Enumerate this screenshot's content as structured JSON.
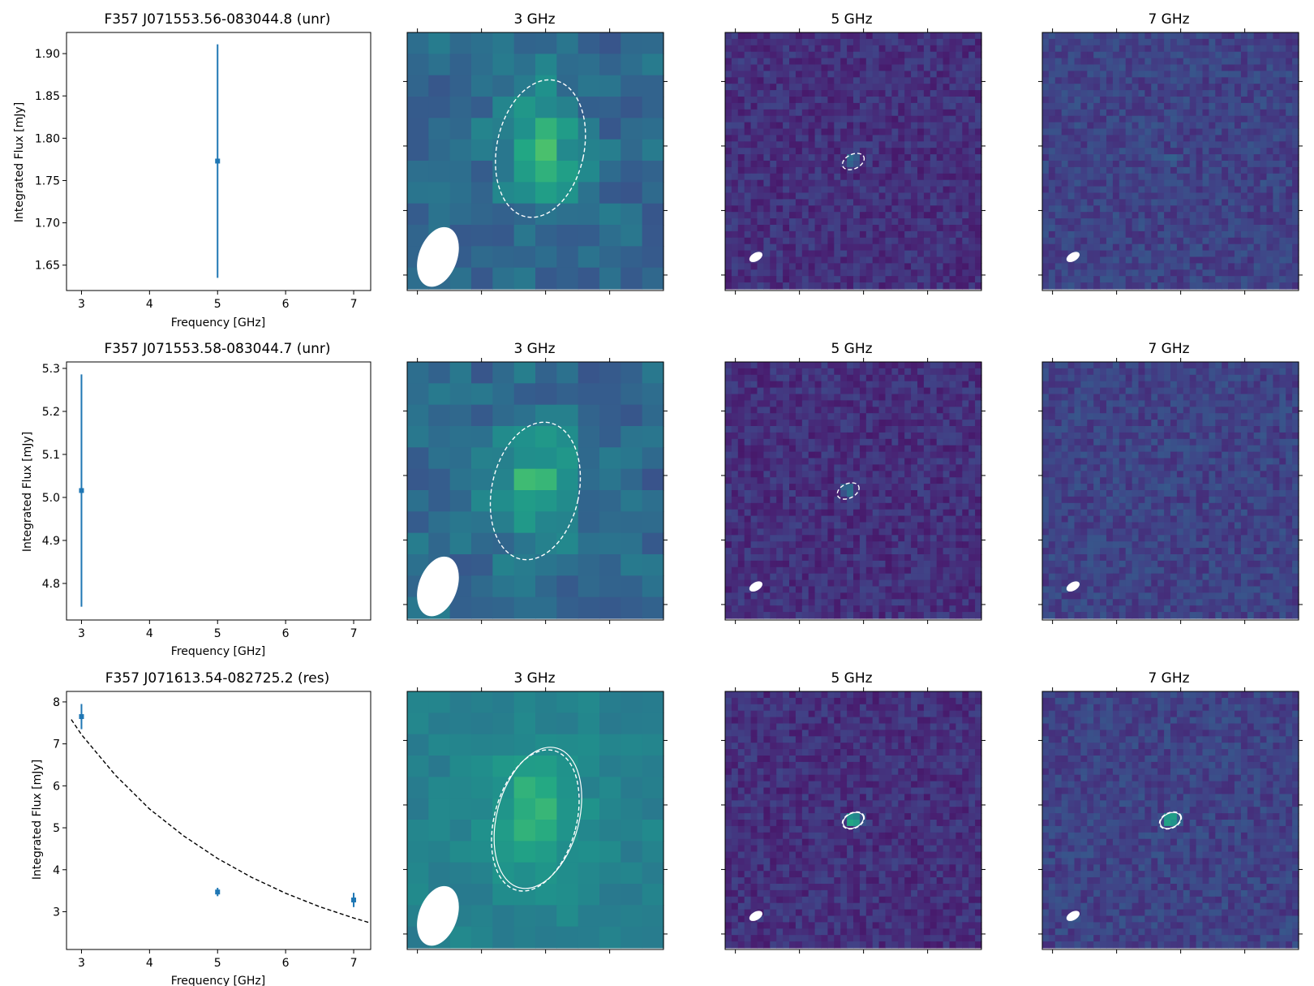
{
  "figure": {
    "rows": [
      {
        "spectrum": {
          "title": "F357 J071553.56-083044.8 (unr)",
          "xlabel": "Frequency [GHz]",
          "ylabel": "Integrated Flux [mJy]",
          "xlim": [
            2.78,
            7.25
          ],
          "ylim": [
            1.62,
            1.925
          ],
          "xticks": [
            "3",
            "4",
            "5",
            "6",
            "7"
          ],
          "yticks": [
            "1.65",
            "1.70",
            "1.75",
            "1.80",
            "1.85",
            "1.90"
          ]
        },
        "images": [
          {
            "title": "3 GHz"
          },
          {
            "title": "5 GHz"
          },
          {
            "title": "7 GHz"
          }
        ]
      },
      {
        "spectrum": {
          "title": "F357 J071553.58-083044.7 (unr)",
          "xlabel": "Frequency [GHz]",
          "ylabel": "Integrated Flux [mJy]",
          "xlim": [
            2.78,
            7.25
          ],
          "ylim": [
            4.715,
            5.315
          ],
          "xticks": [
            "3",
            "4",
            "5",
            "6",
            "7"
          ],
          "yticks": [
            "4.8",
            "4.9",
            "5.0",
            "5.1",
            "5.2",
            "5.3"
          ]
        },
        "images": [
          {
            "title": "3 GHz"
          },
          {
            "title": "5 GHz"
          },
          {
            "title": "7 GHz"
          }
        ]
      },
      {
        "spectrum": {
          "title": "F357 J071613.54-082725.2 (res)",
          "xlabel": "Frequency [GHz]",
          "ylabel": "Integrated Flux [mJy]",
          "xlim": [
            2.78,
            7.25
          ],
          "ylim": [
            2.1,
            8.25
          ],
          "xticks": [
            "3",
            "4",
            "5",
            "6",
            "7"
          ],
          "yticks": [
            "3",
            "4",
            "5",
            "6",
            "7",
            "8"
          ]
        },
        "images": [
          {
            "title": "3 GHz"
          },
          {
            "title": "5 GHz"
          },
          {
            "title": "7 GHz"
          }
        ]
      }
    ]
  },
  "chart_data": [
    {
      "type": "scatter",
      "title": "F357 J071553.56-083044.8 (unr)",
      "xlabel": "Frequency [GHz]",
      "ylabel": "Integrated Flux [mJy]",
      "xlim": [
        2.78,
        7.25
      ],
      "ylim": [
        1.62,
        1.925
      ],
      "series": [
        {
          "points": [
            {
              "x": 5,
              "y": 1.773,
              "yerr": 0.138
            }
          ]
        }
      ],
      "marker_color": "#1f77b4"
    },
    {
      "type": "scatter",
      "title": "F357 J071553.58-083044.7 (unr)",
      "xlabel": "Frequency [GHz]",
      "ylabel": "Integrated Flux [mJy]",
      "xlim": [
        2.78,
        7.25
      ],
      "ylim": [
        4.715,
        5.315
      ],
      "series": [
        {
          "points": [
            {
              "x": 3,
              "y": 5.016,
              "yerr": 0.27
            }
          ]
        }
      ],
      "marker_color": "#1f77b4"
    },
    {
      "type": "scatter",
      "title": "F357 J071613.54-082725.2 (res)",
      "xlabel": "Frequency [GHz]",
      "ylabel": "Integrated Flux [mJy]",
      "xlim": [
        2.78,
        7.25
      ],
      "ylim": [
        2.1,
        8.25
      ],
      "series": [
        {
          "points": [
            {
              "x": 3,
              "y": 7.65,
              "yerr": 0.3
            },
            {
              "x": 5,
              "y": 3.47,
              "yerr": 0.1
            },
            {
              "x": 7,
              "y": 3.28,
              "yerr": 0.17
            }
          ]
        }
      ],
      "fit_curve": {
        "style": "dashed",
        "color": "#000000",
        "points": [
          [
            2.85,
            7.58
          ],
          [
            3.0,
            7.22
          ],
          [
            3.5,
            6.25
          ],
          [
            4.0,
            5.45
          ],
          [
            4.5,
            4.81
          ],
          [
            5.0,
            4.27
          ],
          [
            5.5,
            3.82
          ],
          [
            6.0,
            3.44
          ],
          [
            6.5,
            3.12
          ],
          [
            7.0,
            2.85
          ],
          [
            7.25,
            2.73
          ]
        ]
      },
      "marker_color": "#1f77b4"
    }
  ]
}
